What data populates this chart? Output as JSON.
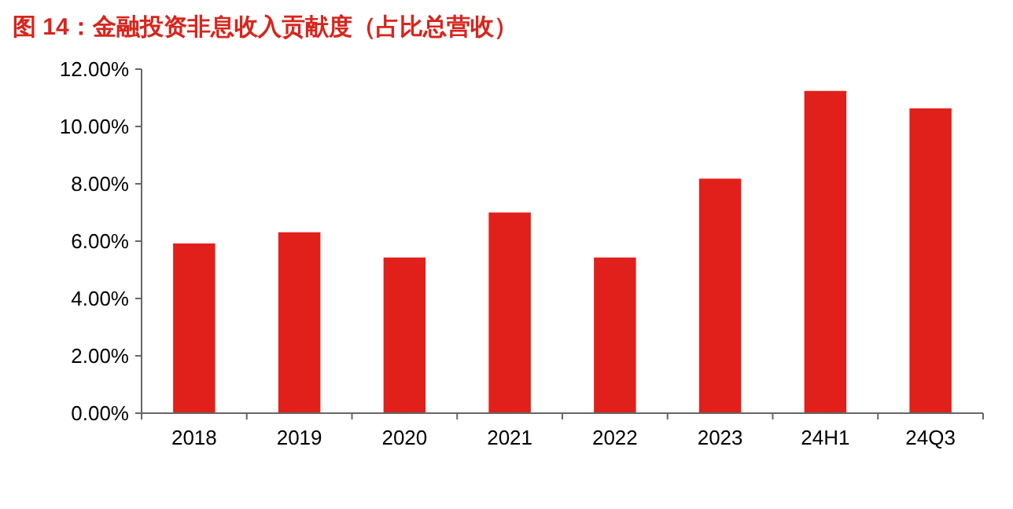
{
  "chart_data": {
    "type": "bar",
    "title": "图 14：金融投资非息收入贡献度（占比总营收）",
    "categories": [
      "2018",
      "2019",
      "2020",
      "2021",
      "2022",
      "2023",
      "24H1",
      "24Q3"
    ],
    "values": [
      5.92,
      6.31,
      5.43,
      7.0,
      5.43,
      8.18,
      11.24,
      10.63
    ],
    "color": "#e1201b",
    "ylim": [
      0,
      12
    ],
    "yticks": [
      {
        "value": 0,
        "label": "0.00%"
      },
      {
        "value": 2,
        "label": "2.00%"
      },
      {
        "value": 4,
        "label": "4.00%"
      },
      {
        "value": 6,
        "label": "6.00%"
      },
      {
        "value": 8,
        "label": "8.00%"
      },
      {
        "value": 10,
        "label": "10.00%"
      },
      {
        "value": 12,
        "label": "12.00%"
      }
    ]
  }
}
